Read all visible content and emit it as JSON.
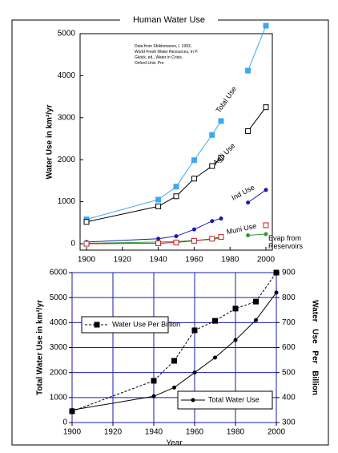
{
  "title": "Human Water Use",
  "chart_data": [
    {
      "type": "line",
      "note": "Data from Shiklomanov, I. 1993, World Fresh Water Resources, In P. Gleick, ed., Water in Crisis, Oxford Univ. Pre",
      "ylabel": "Water Use in km³/yr",
      "x": [
        1900,
        1940,
        1950,
        1960,
        1970,
        1975,
        1980,
        1990,
        2000
      ],
      "xlim": [
        1900,
        2000
      ],
      "xticks": [
        1900,
        1920,
        1940,
        1960,
        1980,
        2000
      ],
      "ylim": [
        0,
        5000
      ],
      "yticks": [
        0,
        1000,
        2000,
        3000,
        4000,
        5000
      ],
      "grid": false,
      "series": [
        {
          "name": "Total Use",
          "color": "#3ea8f0",
          "marker": "filled-square",
          "values": [
            580,
            1050,
            1360,
            1990,
            2590,
            2920,
            null,
            4120,
            5190
          ]
        },
        {
          "name": "Agri Use",
          "color": "#000000",
          "marker": "open-square",
          "values": [
            520,
            890,
            1130,
            1550,
            1850,
            2050,
            null,
            2680,
            3250
          ]
        },
        {
          "name": "Ind Use",
          "color": "#1a1ab0",
          "marker": "dot",
          "values": [
            40,
            120,
            180,
            340,
            540,
            600,
            null,
            980,
            1280
          ]
        },
        {
          "name": "Muni Use",
          "color": "#2e9a2e",
          "marker": "dot",
          "values": [
            10,
            40,
            50,
            80,
            100,
            140,
            null,
            200,
            230
          ]
        },
        {
          "name": "Evap from Reservoirs",
          "color": "#c02020",
          "marker": "open-square",
          "values": [
            0,
            10,
            30,
            70,
            120,
            160,
            null,
            null,
            440
          ]
        }
      ]
    },
    {
      "type": "line",
      "xlabel": "Year",
      "ylabel": "Total Water Use in km³/yr",
      "y2label": "Water Use Per Billion",
      "x": [
        1900,
        1940,
        1950,
        1960,
        1970,
        1980,
        1990,
        2000
      ],
      "xlim": [
        1900,
        2000
      ],
      "xticks": [
        1900,
        1920,
        1940,
        1960,
        1980,
        2000
      ],
      "ylim": [
        0,
        6000
      ],
      "yticks": [
        0,
        1000,
        2000,
        3000,
        4000,
        5000,
        6000
      ],
      "y2lim": [
        300,
        900
      ],
      "y2ticks": [
        300,
        400,
        500,
        600,
        700,
        800,
        900
      ],
      "grid": true,
      "series": [
        {
          "name": "Water Use Per Billion",
          "color": "#000000",
          "marker": "filled-square",
          "dash": true,
          "axis": "y2",
          "values": [
            345,
            467,
            547,
            669,
            707,
            756,
            784,
            900
          ]
        },
        {
          "name": "Total Water Use",
          "color": "#000000",
          "marker": "dot",
          "values": [
            500,
            1050,
            1400,
            2000,
            2600,
            3300,
            4100,
            5200
          ]
        }
      ]
    }
  ]
}
